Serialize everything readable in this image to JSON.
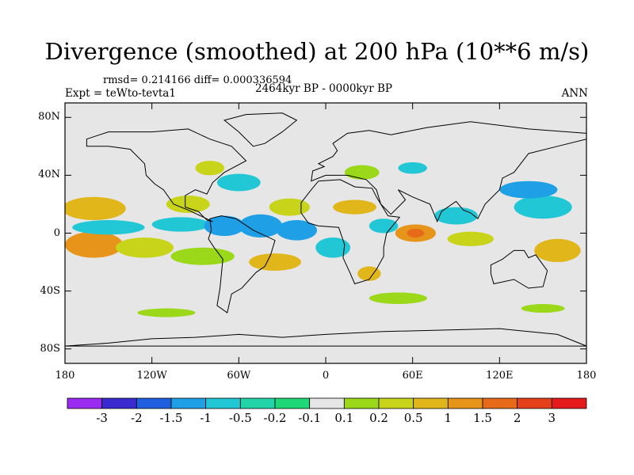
{
  "title": "Divergence (smoothed) at 200 hPa (10**6 m/s)",
  "stats_line": "rmsd= 0.214166 diff= 0.000336594",
  "experiment": "Expt = teWto-tevta1",
  "period": "2464kyr BP - 0000kyr BP",
  "season": "ANN",
  "map": {
    "projection": "cylindrical-equidistant",
    "lon_range": [
      -180,
      180
    ],
    "lat_range": [
      -90,
      90
    ],
    "y_ticks": [
      {
        "lat": 80,
        "label": "80N"
      },
      {
        "lat": 40,
        "label": "40N"
      },
      {
        "lat": 0,
        "label": "0"
      },
      {
        "lat": -40,
        "label": "40S"
      },
      {
        "lat": -80,
        "label": "80S"
      }
    ],
    "x_ticks": [
      {
        "lon": -180,
        "label": "180"
      },
      {
        "lon": -120,
        "label": "120W"
      },
      {
        "lon": -60,
        "label": "60W"
      },
      {
        "lon": 0,
        "label": "0"
      },
      {
        "lon": 60,
        "label": "60E"
      },
      {
        "lon": 120,
        "label": "120E"
      },
      {
        "lon": 180,
        "label": "180"
      }
    ],
    "background_color": "#e6e6e6"
  },
  "colorbar": {
    "colors": [
      "#9b2bf0",
      "#3a2bd0",
      "#1f5fe0",
      "#1fa0e6",
      "#22c7d6",
      "#22d4a8",
      "#1ed878",
      "#e6e6e6",
      "#9bd81a",
      "#c8d41a",
      "#e0b61a",
      "#e6941a",
      "#e66a1a",
      "#e6401a",
      "#e61a1a"
    ],
    "labels": [
      "-3",
      "-2",
      "-1.5",
      "-1",
      "-0.5",
      "-0.2",
      "-0.1",
      "0.1",
      "0.2",
      "0.5",
      "1",
      "1.5",
      "2",
      "3"
    ]
  },
  "anomalies": [
    {
      "lon": -160,
      "lat": -8,
      "rx": 20,
      "ry": 9,
      "color": "#e6941a"
    },
    {
      "lon": -160,
      "lat": 17,
      "rx": 22,
      "ry": 8,
      "color": "#e0b61a"
    },
    {
      "lon": -150,
      "lat": 4,
      "rx": 25,
      "ry": 5,
      "color": "#22c7d6"
    },
    {
      "lon": -125,
      "lat": -10,
      "rx": 20,
      "ry": 7,
      "color": "#c8d41a"
    },
    {
      "lon": -100,
      "lat": 6,
      "rx": 20,
      "ry": 5,
      "color": "#22c7d6"
    },
    {
      "lon": -95,
      "lat": 20,
      "rx": 15,
      "ry": 6,
      "color": "#c8d41a"
    },
    {
      "lon": -85,
      "lat": -16,
      "rx": 22,
      "ry": 6,
      "color": "#9bd81a"
    },
    {
      "lon": -70,
      "lat": 5,
      "rx": 14,
      "ry": 7,
      "color": "#1fa0e6"
    },
    {
      "lon": -45,
      "lat": 5,
      "rx": 15,
      "ry": 8,
      "color": "#1fa0e6"
    },
    {
      "lon": -35,
      "lat": -20,
      "rx": 18,
      "ry": 6,
      "color": "#e0b61a"
    },
    {
      "lon": -60,
      "lat": 35,
      "rx": 15,
      "ry": 6,
      "color": "#22c7d6"
    },
    {
      "lon": -25,
      "lat": 18,
      "rx": 14,
      "ry": 6,
      "color": "#c8d41a"
    },
    {
      "lon": -20,
      "lat": 2,
      "rx": 14,
      "ry": 7,
      "color": "#1fa0e6"
    },
    {
      "lon": 5,
      "lat": -10,
      "rx": 12,
      "ry": 7,
      "color": "#22c7d6"
    },
    {
      "lon": 20,
      "lat": 18,
      "rx": 15,
      "ry": 5,
      "color": "#e0b61a"
    },
    {
      "lon": 40,
      "lat": 5,
      "rx": 10,
      "ry": 5,
      "color": "#22c7d6"
    },
    {
      "lon": 62,
      "lat": 0,
      "rx": 14,
      "ry": 6,
      "color": "#e6941a"
    },
    {
      "lon": 62,
      "lat": 0,
      "rx": 6,
      "ry": 3,
      "color": "#e66a1a"
    },
    {
      "lon": 90,
      "lat": 12,
      "rx": 15,
      "ry": 6,
      "color": "#22c7d6"
    },
    {
      "lon": 100,
      "lat": -4,
      "rx": 16,
      "ry": 5,
      "color": "#c8d41a"
    },
    {
      "lon": 150,
      "lat": 18,
      "rx": 20,
      "ry": 8,
      "color": "#22c7d6"
    },
    {
      "lon": 140,
      "lat": 30,
      "rx": 20,
      "ry": 6,
      "color": "#1fa0e6"
    },
    {
      "lon": 160,
      "lat": -12,
      "rx": 16,
      "ry": 8,
      "color": "#e0b61a"
    },
    {
      "lon": 50,
      "lat": -45,
      "rx": 20,
      "ry": 4,
      "color": "#9bd81a"
    },
    {
      "lon": 150,
      "lat": -52,
      "rx": 15,
      "ry": 3,
      "color": "#9bd81a"
    },
    {
      "lon": -110,
      "lat": -55,
      "rx": 20,
      "ry": 3,
      "color": "#9bd81a"
    },
    {
      "lon": 25,
      "lat": 42,
      "rx": 12,
      "ry": 5,
      "color": "#9bd81a"
    },
    {
      "lon": 60,
      "lat": 45,
      "rx": 10,
      "ry": 4,
      "color": "#22c7d6"
    },
    {
      "lon": -80,
      "lat": 45,
      "rx": 10,
      "ry": 5,
      "color": "#c8d41a"
    },
    {
      "lon": 30,
      "lat": -28,
      "rx": 8,
      "ry": 5,
      "color": "#e0b61a"
    }
  ],
  "continents": [
    {
      "name": "north-america",
      "points": [
        [
          -165,
          65
        ],
        [
          -150,
          70
        ],
        [
          -120,
          70
        ],
        [
          -95,
          72
        ],
        [
          -80,
          65
        ],
        [
          -65,
          60
        ],
        [
          -55,
          50
        ],
        [
          -70,
          42
        ],
        [
          -78,
          35
        ],
        [
          -82,
          27
        ],
        [
          -90,
          30
        ],
        [
          -97,
          26
        ],
        [
          -97,
          18
        ],
        [
          -88,
          15
        ],
        [
          -82,
          9
        ],
        [
          -78,
          8
        ],
        [
          -95,
          16
        ],
        [
          -105,
          20
        ],
        [
          -112,
          30
        ],
        [
          -118,
          34
        ],
        [
          -124,
          40
        ],
        [
          -125,
          48
        ],
        [
          -135,
          58
        ],
        [
          -150,
          60
        ],
        [
          -165,
          60
        ]
      ]
    },
    {
      "name": "greenland",
      "points": [
        [
          -50,
          60
        ],
        [
          -42,
          62
        ],
        [
          -30,
          70
        ],
        [
          -20,
          78
        ],
        [
          -30,
          83
        ],
        [
          -55,
          82
        ],
        [
          -70,
          78
        ],
        [
          -60,
          70
        ]
      ]
    },
    {
      "name": "south-america",
      "points": [
        [
          -80,
          10
        ],
        [
          -72,
          12
        ],
        [
          -62,
          10
        ],
        [
          -50,
          2
        ],
        [
          -35,
          -5
        ],
        [
          -38,
          -15
        ],
        [
          -42,
          -23
        ],
        [
          -48,
          -27
        ],
        [
          -58,
          -38
        ],
        [
          -65,
          -42
        ],
        [
          -68,
          -55
        ],
        [
          -75,
          -50
        ],
        [
          -73,
          -38
        ],
        [
          -71,
          -18
        ],
        [
          -77,
          -10
        ],
        [
          -81,
          -4
        ],
        [
          -79,
          2
        ]
      ]
    },
    {
      "name": "africa",
      "points": [
        [
          -17,
          14
        ],
        [
          -17,
          21
        ],
        [
          -10,
          30
        ],
        [
          -5,
          36
        ],
        [
          10,
          37
        ],
        [
          20,
          32
        ],
        [
          32,
          31
        ],
        [
          35,
          25
        ],
        [
          43,
          12
        ],
        [
          51,
          11
        ],
        [
          42,
          0
        ],
        [
          40,
          -10
        ],
        [
          40,
          -16
        ],
        [
          35,
          -25
        ],
        [
          30,
          -32
        ],
        [
          20,
          -35
        ],
        [
          17,
          -28
        ],
        [
          12,
          -17
        ],
        [
          13,
          -8
        ],
        [
          9,
          4
        ],
        [
          -5,
          5
        ],
        [
          -12,
          7
        ]
      ]
    },
    {
      "name": "eurasia",
      "points": [
        [
          -10,
          36
        ],
        [
          -9,
          43
        ],
        [
          -1,
          46
        ],
        [
          -5,
          48
        ],
        [
          5,
          53
        ],
        [
          8,
          57
        ],
        [
          5,
          62
        ],
        [
          15,
          69
        ],
        [
          30,
          71
        ],
        [
          45,
          68
        ],
        [
          70,
          73
        ],
        [
          100,
          77
        ],
        [
          140,
          72
        ],
        [
          180,
          69
        ],
        [
          180,
          65
        ],
        [
          160,
          60
        ],
        [
          140,
          55
        ],
        [
          130,
          42
        ],
        [
          122,
          38
        ],
        [
          120,
          30
        ],
        [
          110,
          20
        ],
        [
          105,
          10
        ],
        [
          100,
          14
        ],
        [
          95,
          16
        ],
        [
          90,
          22
        ],
        [
          80,
          15
        ],
        [
          77,
          8
        ],
        [
          72,
          20
        ],
        [
          60,
          25
        ],
        [
          50,
          30
        ],
        [
          55,
          23
        ],
        [
          45,
          13
        ],
        [
          38,
          20
        ],
        [
          35,
          30
        ],
        [
          28,
          37
        ],
        [
          15,
          40
        ],
        [
          0,
          40
        ]
      ]
    },
    {
      "name": "australia",
      "points": [
        [
          114,
          -22
        ],
        [
          122,
          -18
        ],
        [
          130,
          -12
        ],
        [
          137,
          -12
        ],
        [
          140,
          -17
        ],
        [
          145,
          -15
        ],
        [
          153,
          -26
        ],
        [
          150,
          -37
        ],
        [
          140,
          -38
        ],
        [
          130,
          -32
        ],
        [
          116,
          -35
        ],
        [
          114,
          -28
        ]
      ]
    },
    {
      "name": "antarctica",
      "points": [
        [
          -180,
          -78
        ],
        [
          -150,
          -76
        ],
        [
          -120,
          -73
        ],
        [
          -90,
          -72
        ],
        [
          -60,
          -70
        ],
        [
          -30,
          -72
        ],
        [
          0,
          -70
        ],
        [
          40,
          -68
        ],
        [
          80,
          -67
        ],
        [
          120,
          -66
        ],
        [
          160,
          -70
        ],
        [
          180,
          -78
        ]
      ]
    }
  ]
}
